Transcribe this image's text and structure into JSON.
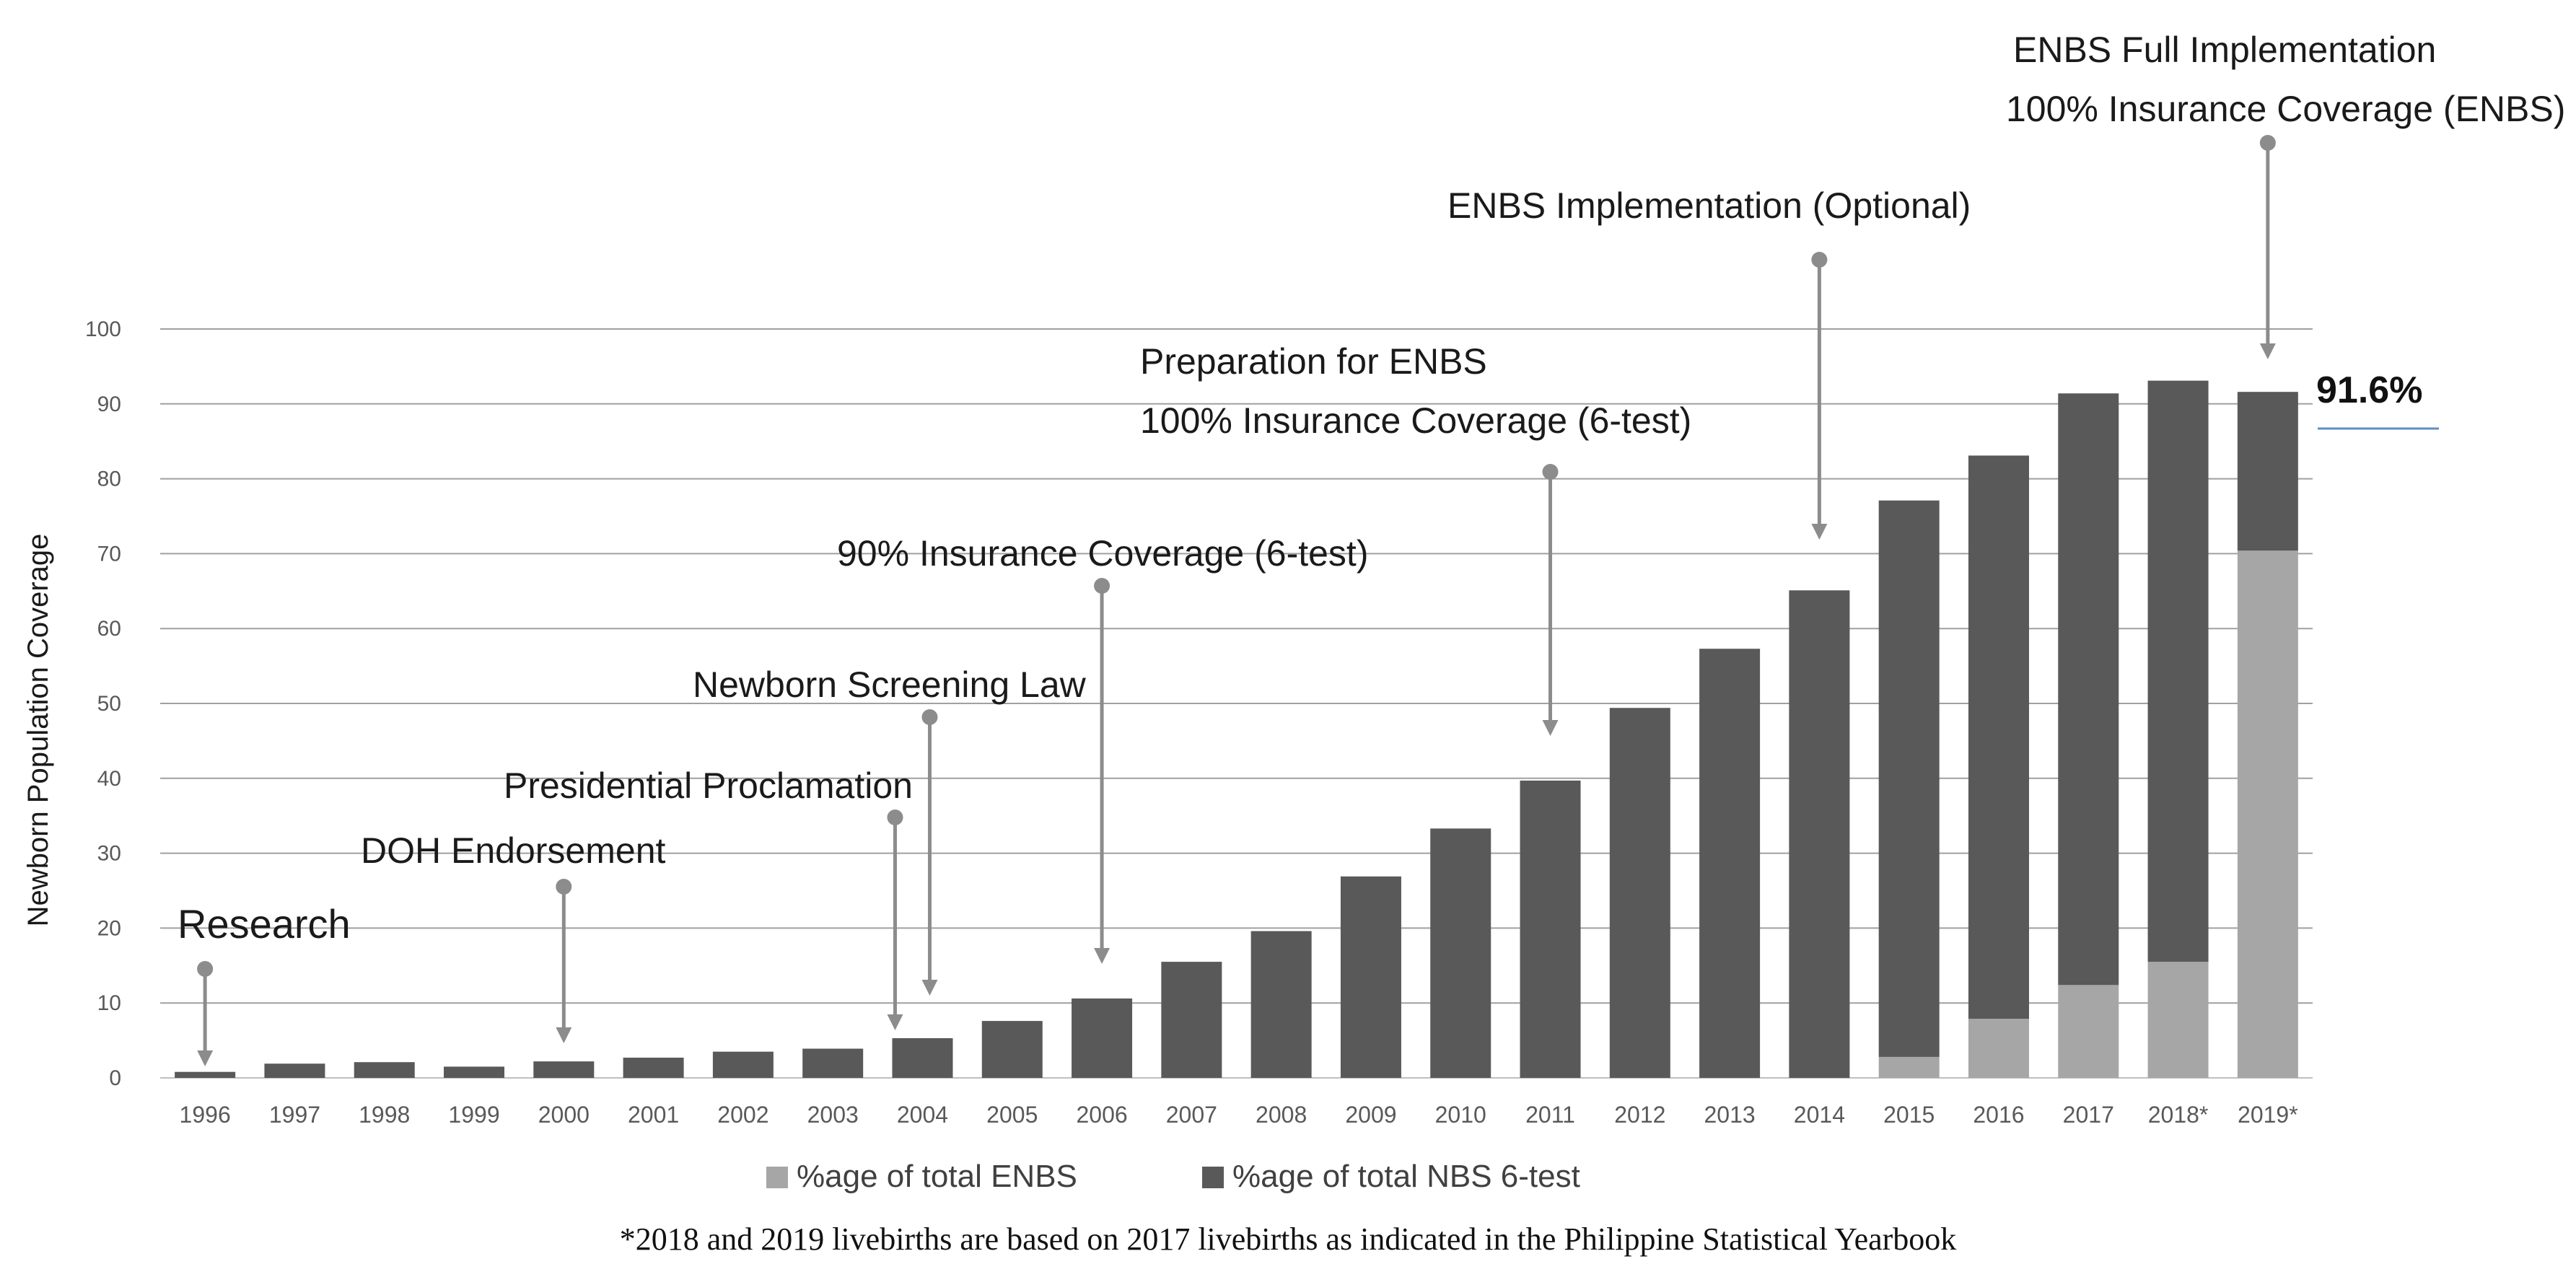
{
  "chart_data": {
    "type": "bar",
    "stacked": true,
    "ylabel": "Newborn Population Coverage",
    "ylim": [
      0,
      100
    ],
    "yticks": [
      0,
      10,
      20,
      30,
      40,
      50,
      60,
      70,
      80,
      90,
      100
    ],
    "grid": true,
    "categories": [
      "1996",
      "1997",
      "1998",
      "1999",
      "2000",
      "2001",
      "2002",
      "2003",
      "2004",
      "2005",
      "2006",
      "2007",
      "2008",
      "2009",
      "2010",
      "2011",
      "2012",
      "2013",
      "2014",
      "2015",
      "2016",
      "2017",
      "2018*",
      "2019*"
    ],
    "series": [
      {
        "name": "%age of total ENBS",
        "color": "#a6a6a6",
        "values": [
          0,
          0,
          0,
          0,
          0,
          0,
          0,
          0,
          0,
          0,
          0,
          0,
          0,
          0,
          0,
          0,
          0,
          0,
          0,
          2.8,
          7.9,
          12.4,
          15.5,
          70.4
        ]
      },
      {
        "name": "%age of total NBS 6-test",
        "color": "#595959",
        "values": [
          0.8,
          1.9,
          2.1,
          1.5,
          2.2,
          2.7,
          3.5,
          3.9,
          5.3,
          7.6,
          10.6,
          15.5,
          19.6,
          26.9,
          33.3,
          39.7,
          49.4,
          57.3,
          65.1,
          74.3,
          75.2,
          79.0,
          77.6,
          21.2
        ]
      }
    ],
    "legend_position": "bottom",
    "highlight_label": "91.6%",
    "annotations": [
      {
        "lines": [
          "Research"
        ],
        "category": "1996"
      },
      {
        "lines": [
          "DOH Endorsement"
        ],
        "category": "2000"
      },
      {
        "lines": [
          "Presidential Proclamation"
        ],
        "category": "2004"
      },
      {
        "lines": [
          "Newborn Screening Law"
        ],
        "category": "2004"
      },
      {
        "lines": [
          "90% Insurance Coverage (6-test)"
        ],
        "category": "2006"
      },
      {
        "lines": [
          "Preparation for ENBS",
          "100% Insurance Coverage (6-test)"
        ],
        "category": "2011"
      },
      {
        "lines": [
          "ENBS Implementation (Optional)"
        ],
        "category": "2014"
      },
      {
        "lines": [
          "ENBS Full Implementation",
          "100% Insurance Coverage (ENBS)"
        ],
        "category": "2019*"
      }
    ],
    "footnote": "*2018 and 2019 livebirths are based on 2017 livebirths as indicated in the Philippine Statistical Yearbook"
  }
}
